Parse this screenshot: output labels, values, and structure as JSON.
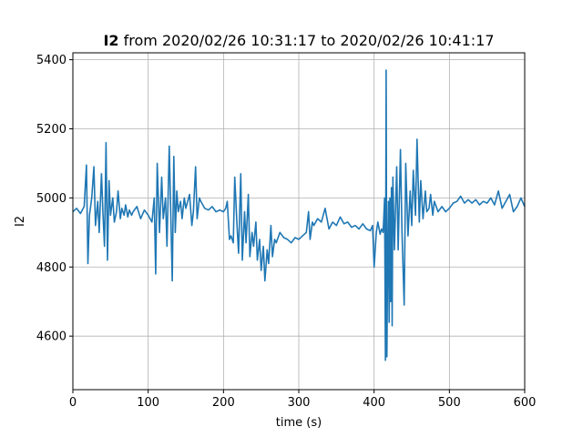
{
  "chart_data": {
    "type": "line",
    "title_bold": "I2",
    "title_rest": " from 2020/02/26 10:31:17 to 2020/02/26 10:41:17",
    "xlabel": "time (s)",
    "ylabel": "I2",
    "xlim": [
      0,
      600
    ],
    "ylim": [
      4445,
      5420
    ],
    "xticks": [
      0,
      100,
      200,
      300,
      400,
      500,
      600
    ],
    "yticks": [
      4600,
      4800,
      5000,
      5200,
      5400
    ],
    "grid": true,
    "line_color": "#1f77b4",
    "series": [
      {
        "x": [
          0,
          5,
          10,
          15,
          18,
          20,
          22,
          25,
          28,
          30,
          33,
          35,
          38,
          40,
          42,
          44,
          46,
          48,
          50,
          53,
          55,
          58,
          60,
          63,
          65,
          68,
          70,
          73,
          75,
          78,
          80,
          85,
          90,
          95,
          100,
          105,
          108,
          110,
          112,
          115,
          118,
          120,
          123,
          125,
          128,
          130,
          132,
          134,
          136,
          138,
          140,
          143,
          145,
          148,
          150,
          155,
          158,
          160,
          163,
          165,
          168,
          170,
          175,
          180,
          185,
          190,
          195,
          200,
          203,
          205,
          208,
          210,
          213,
          215,
          218,
          220,
          223,
          225,
          228,
          230,
          233,
          235,
          238,
          240,
          243,
          245,
          248,
          250,
          253,
          255,
          258,
          260,
          263,
          265,
          268,
          270,
          275,
          280,
          285,
          290,
          295,
          300,
          305,
          310,
          313,
          315,
          318,
          320,
          325,
          330,
          335,
          340,
          345,
          350,
          355,
          360,
          365,
          370,
          375,
          380,
          385,
          390,
          395,
          398,
          400,
          403,
          405,
          408,
          410,
          412,
          414,
          415,
          416,
          417,
          418,
          419,
          420,
          421,
          422,
          423,
          424,
          425,
          427,
          430,
          432,
          435,
          437,
          440,
          442,
          445,
          448,
          450,
          452,
          455,
          457,
          460,
          462,
          465,
          468,
          470,
          473,
          475,
          478,
          480,
          485,
          490,
          495,
          500,
          505,
          510,
          515,
          520,
          525,
          530,
          535,
          540,
          545,
          550,
          555,
          560,
          565,
          570,
          575,
          580,
          585,
          590,
          595,
          600
        ],
        "y": [
          4960,
          4970,
          4955,
          4975,
          5095,
          4810,
          4950,
          5000,
          5090,
          4920,
          4990,
          4900,
          5070,
          4950,
          4860,
          5160,
          4820,
          5050,
          4950,
          5000,
          4930,
          4960,
          5020,
          4940,
          4970,
          4950,
          4980,
          4945,
          4965,
          4950,
          4960,
          4975,
          4940,
          4965,
          4950,
          4930,
          5000,
          4780,
          5100,
          4900,
          5060,
          4940,
          5000,
          4860,
          5150,
          4950,
          4760,
          5120,
          4900,
          5020,
          4960,
          4990,
          4940,
          5000,
          4970,
          5010,
          4920,
          4960,
          5090,
          4940,
          5000,
          4990,
          4970,
          4965,
          4975,
          4960,
          4965,
          4960,
          4970,
          4990,
          4880,
          4890,
          4870,
          5060,
          4920,
          4840,
          5070,
          4820,
          4960,
          4870,
          5010,
          4830,
          4900,
          4860,
          4930,
          4820,
          4880,
          4790,
          4860,
          4760,
          4850,
          4810,
          4920,
          4830,
          4880,
          4870,
          4900,
          4885,
          4880,
          4870,
          4885,
          4880,
          4890,
          4900,
          4960,
          4880,
          4930,
          4920,
          4940,
          4930,
          4970,
          4910,
          4930,
          4920,
          4945,
          4925,
          4930,
          4915,
          4920,
          4910,
          4925,
          4910,
          4905,
          4920,
          4800,
          4900,
          4930,
          4895,
          4910,
          4900,
          5000,
          4530,
          5370,
          4540,
          4800,
          4990,
          4640,
          5000,
          4700,
          5030,
          4630,
          5060,
          4850,
          5090,
          4850,
          5140,
          4900,
          4690,
          5100,
          4890,
          5020,
          4920,
          5080,
          4950,
          5170,
          4930,
          5050,
          4940,
          5020,
          4960,
          4970,
          5010,
          4950,
          4990,
          4960,
          4975,
          4960,
          4970,
          4985,
          4990,
          5005,
          4985,
          4995,
          4985,
          4995,
          4980,
          4990,
          4985,
          5000,
          4980,
          5020,
          4970,
          4990,
          5010,
          4960,
          4975,
          5000,
          4975
        ]
      }
    ]
  }
}
